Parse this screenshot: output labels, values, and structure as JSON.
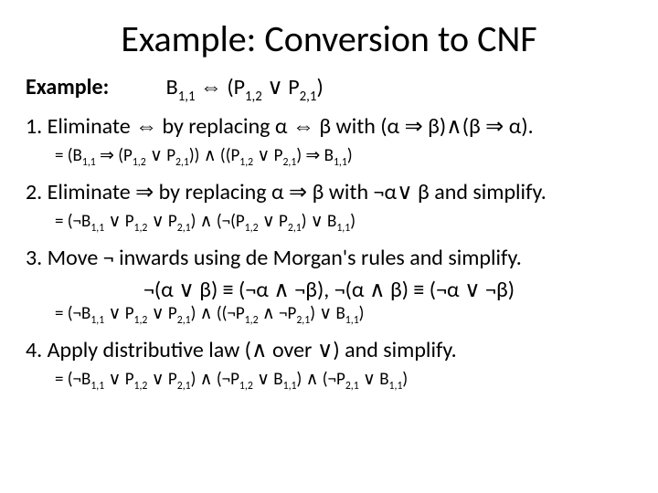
{
  "title": "Example: Conversion to CNF",
  "example_label": "Example:",
  "example_expr": "B₁,₁ ⇔ (P₁,₂ ∨ P₂,₁)",
  "steps": [
    {
      "rule": "1.  Eliminate ⇔ by replacing α ⇔ β with (α ⇒ β)∧(β ⇒ α).",
      "result": "= (B₁,₁ ⇒ (P₁,₂ ∨ P₂,₁)) ∧ ((P₁,₂ ∨ P₂,₁) ⇒ B₁,₁)"
    },
    {
      "rule": "2. Eliminate ⇒ by replacing α ⇒ β with ¬α∨ β and simplify.",
      "result": "= (¬B₁,₁ ∨ P₁,₂ ∨ P₂,₁) ∧ (¬(P₁,₂ ∨ P₂,₁) ∨ B₁,₁)"
    },
    {
      "rule": "3. Move ¬ inwards using de Morgan's rules and simplify.",
      "rule_extra": "¬(α ∨ β) ≡ (¬α ∧ ¬β),  ¬(α ∧ β) ≡ (¬α ∨ ¬β)",
      "result": "= (¬B₁,₁ ∨ P₁,₂ ∨ P₂,₁) ∧ ((¬P₁,₂ ∧ ¬P₂,₁) ∨ B₁,₁)"
    },
    {
      "rule": "4. Apply distributive law (∧ over ∨) and simplify.",
      "result": "= (¬B₁,₁ ∨ P₁,₂ ∨ P₂,₁) ∧ (¬P₁,₂ ∨ B₁,₁) ∧ (¬P₂,₁ ∨ B₁,₁)"
    }
  ],
  "colors": {
    "background": "#ffffff",
    "text": "#000000"
  },
  "typography": {
    "title_fontsize": 40,
    "body_fontsize": 24,
    "result_fontsize": 19,
    "font_family": "Calibri"
  }
}
